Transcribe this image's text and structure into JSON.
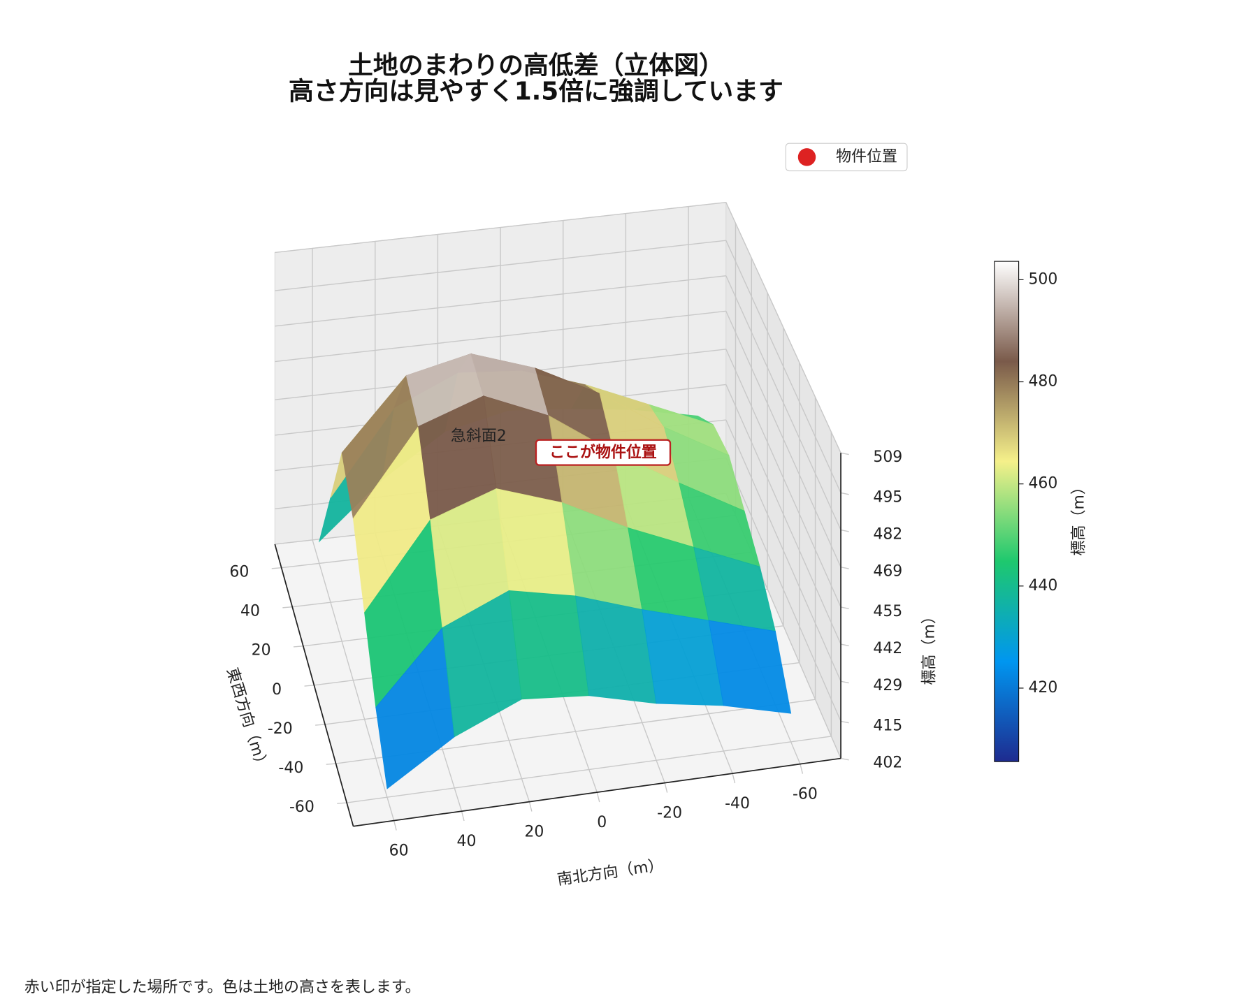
{
  "chart_data": {
    "type": "surface3d",
    "title": [
      "土地のまわりの高低差（立体図）",
      "高さ方向は見やすく1.5倍に強調しています"
    ],
    "xlabel": "南北方向（m）",
    "ylabel": "東西方向（m）",
    "zlabel": "標高（m）",
    "x": [
      60,
      40,
      20,
      0,
      -20,
      -40,
      -60
    ],
    "y": [
      60,
      40,
      20,
      0,
      -20,
      -40,
      -60
    ],
    "z": [
      [
        410,
        430,
        445,
        450,
        448,
        445,
        440
      ],
      [
        440,
        470,
        480,
        478,
        470,
        460,
        450
      ],
      [
        470,
        495,
        500,
        492,
        480,
        465,
        452
      ],
      [
        460,
        490,
        498,
        488,
        472,
        458,
        445
      ],
      [
        440,
        470,
        478,
        470,
        458,
        448,
        438
      ],
      [
        420,
        445,
        455,
        450,
        442,
        435,
        428
      ],
      [
        405,
        420,
        430,
        428,
        422,
        418,
        412
      ]
    ],
    "xlim": [
      -72,
      72
    ],
    "ylim": [
      -72,
      72
    ],
    "zlim": [
      402,
      509
    ],
    "xticks": [
      60,
      40,
      20,
      0,
      -20,
      -40,
      -60
    ],
    "yticks": [
      60,
      40,
      20,
      0,
      -20,
      -40,
      -60
    ],
    "zticks": [
      402,
      415,
      429,
      442,
      455,
      469,
      482,
      495,
      509
    ],
    "colormap": [
      "#1e2b8f",
      "#0096f0",
      "#1ec86e",
      "#f5f08a",
      "#7a5a4a",
      "#ffffff"
    ],
    "clim": [
      405.6,
      503.6
    ],
    "colorbar_label": "標高（m）",
    "colorbar_ticks": [
      420,
      440,
      460,
      480,
      500
    ],
    "legend": {
      "label": "物件位置",
      "color": "#dd2222"
    },
    "annotations": [
      "急斜面2",
      "ここが物件位置"
    ],
    "caption": "赤い印が指定した場所です。色は土地の高さを表します。"
  }
}
